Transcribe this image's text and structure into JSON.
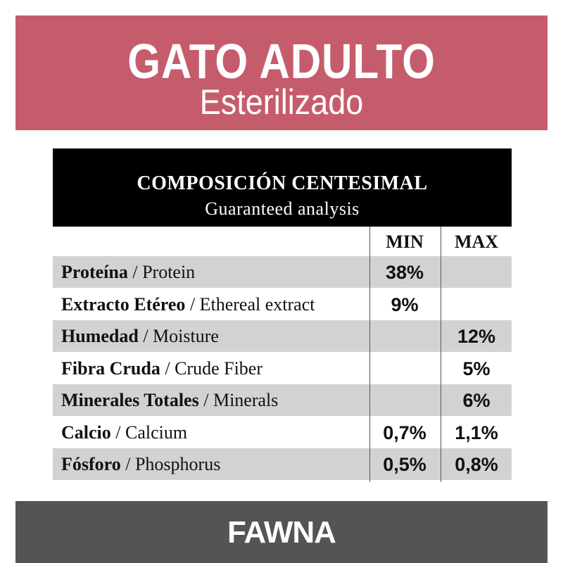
{
  "header": {
    "title": "GATO ADULTO",
    "subtitle": "Esterilizado",
    "background_color": "#c55c6c"
  },
  "table": {
    "heading": "COMPOSICIÓN CENTESIMAL",
    "subheading": "Guaranteed analysis",
    "columns": {
      "min": "MIN",
      "max": "MAX"
    },
    "rows": [
      {
        "es": "Proteína",
        "sep": " / ",
        "en": "Protein",
        "min": "38%",
        "max": ""
      },
      {
        "es": "Extracto Etéreo",
        "sep": " / ",
        "en": "Ethereal extract",
        "min": "9%",
        "max": ""
      },
      {
        "es": "Humedad",
        "sep": " / ",
        "en": "Moisture",
        "min": "",
        "max": "12%"
      },
      {
        "es": "Fibra Cruda",
        "sep": " / ",
        "en": "Crude Fiber",
        "min": "",
        "max": "5%"
      },
      {
        "es": "Minerales Totales",
        "sep": " / ",
        "en": "Minerals",
        "min": "",
        "max": "6%"
      },
      {
        "es": "Calcio",
        "sep": " / ",
        "en": "Calcium",
        "min": "0,7%",
        "max": "1,1%"
      },
      {
        "es": "Fósforo",
        "sep": " / ",
        "en": "Phosphorus",
        "min": "0,5%",
        "max": "0,8%"
      }
    ],
    "shade_color": "#d2d2d2"
  },
  "footer": {
    "brand": "FAWNA",
    "background_color": "#545456"
  }
}
